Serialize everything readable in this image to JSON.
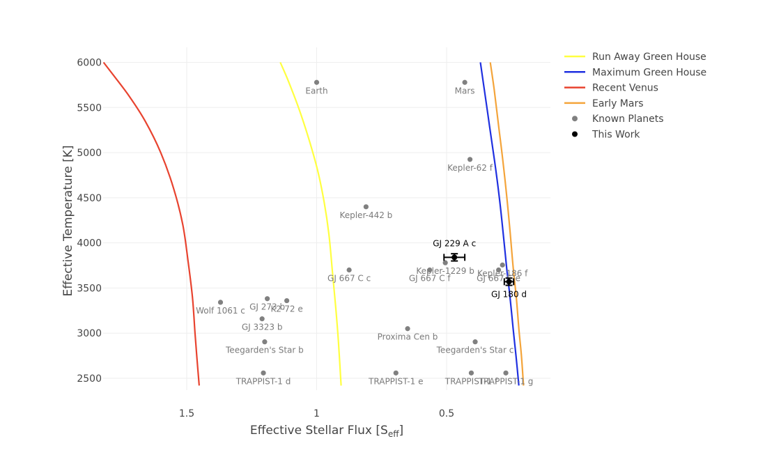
{
  "chart_data": {
    "type": "scatter",
    "xlabel": "Effective Stellar Flux [S",
    "xlabel_sub": "eff",
    "xlabel_suffix": "]",
    "ylabel": "Effective Temperature [K]",
    "x_reversed": true,
    "xlim": [
      1.82,
      0.1
    ],
    "ylim": [
      2400,
      6070
    ],
    "xticks": [
      {
        "value": 1.5,
        "label": "1.5"
      },
      {
        "value": 1.0,
        "label": "1"
      },
      {
        "value": 0.5,
        "label": "0.5"
      }
    ],
    "yticks": [
      {
        "value": 6000,
        "label": "6000"
      },
      {
        "value": 5500,
        "label": "5500"
      },
      {
        "value": 5000,
        "label": "5000"
      },
      {
        "value": 4500,
        "label": "4500"
      },
      {
        "value": 4000,
        "label": "4000"
      },
      {
        "value": 3500,
        "label": "3500"
      },
      {
        "value": 3000,
        "label": "3000"
      },
      {
        "value": 2500,
        "label": "2500"
      }
    ],
    "grid": true,
    "legend_position": "top-right",
    "legend": [
      {
        "name": "Run Away Green House",
        "kind": "line",
        "color": "#ffff40"
      },
      {
        "name": "Maximum Green House",
        "kind": "line",
        "color": "#1f30e0"
      },
      {
        "name": "Recent Venus",
        "kind": "line",
        "color": "#e8432f"
      },
      {
        "name": "Early Mars",
        "kind": "line",
        "color": "#f4a43a"
      },
      {
        "name": "Known Planets",
        "kind": "marker",
        "color": "#808080"
      },
      {
        "name": "This Work",
        "kind": "marker",
        "color": "#000000"
      }
    ],
    "series": [
      {
        "name": "Recent Venus",
        "color": "#e8432f",
        "x": [
          1.82,
          1.78,
          1.72,
          1.66,
          1.6,
          1.55,
          1.515,
          1.495,
          1.478,
          1.468,
          1.46,
          1.452
        ],
        "y": [
          6000,
          5850,
          5620,
          5350,
          5000,
          4600,
          4200,
          3800,
          3400,
          3000,
          2700,
          2420
        ]
      },
      {
        "name": "Run Away Green House",
        "color": "#ffff40",
        "x": [
          1.14,
          1.11,
          1.07,
          1.03,
          0.996,
          0.971,
          0.953,
          0.94,
          0.927,
          0.916,
          0.906
        ],
        "y": [
          6000,
          5800,
          5500,
          5150,
          4800,
          4450,
          4100,
          3700,
          3300,
          2900,
          2420
        ]
      },
      {
        "name": "Maximum Green House",
        "color": "#1f30e0",
        "x": [
          0.37,
          0.355,
          0.335,
          0.315,
          0.297,
          0.282,
          0.268,
          0.256,
          0.244,
          0.233,
          0.222
        ],
        "y": [
          6000,
          5700,
          5300,
          4900,
          4500,
          4100,
          3700,
          3400,
          3050,
          2750,
          2420
        ]
      },
      {
        "name": "Early Mars",
        "color": "#f4a43a",
        "x": [
          0.332,
          0.317,
          0.3,
          0.283,
          0.268,
          0.255,
          0.243,
          0.232,
          0.222,
          0.212,
          0.204
        ],
        "y": [
          6000,
          5700,
          5300,
          4900,
          4500,
          4100,
          3700,
          3400,
          3050,
          2750,
          2420
        ]
      }
    ],
    "known_planets": [
      {
        "name": "Earth",
        "x": 1.0,
        "y": 5778
      },
      {
        "name": "Mars",
        "x": 0.43,
        "y": 5778
      },
      {
        "name": "Kepler-62 f",
        "x": 0.41,
        "y": 4925
      },
      {
        "name": "Kepler-442 b",
        "x": 0.81,
        "y": 4400
      },
      {
        "name": "Kepler-1229 b",
        "x": 0.505,
        "y": 3780
      },
      {
        "name": "Kepler-186 f",
        "x": 0.285,
        "y": 3755
      },
      {
        "name": "GJ 667 C c",
        "x": 0.875,
        "y": 3700
      },
      {
        "name": "GJ 667 C f",
        "x": 0.565,
        "y": 3700
      },
      {
        "name": "GJ 667 C e",
        "x": 0.3,
        "y": 3700
      },
      {
        "name": "Wolf 1061 c",
        "x": 1.37,
        "y": 3342
      },
      {
        "name": "GJ 273 b",
        "x": 1.19,
        "y": 3382
      },
      {
        "name": "K2-72 e",
        "x": 1.115,
        "y": 3360
      },
      {
        "name": "GJ 3323 b",
        "x": 1.21,
        "y": 3159
      },
      {
        "name": "Proxima Cen b",
        "x": 0.65,
        "y": 3050
      },
      {
        "name": "Teegarden's Star b",
        "x": 1.2,
        "y": 2904
      },
      {
        "name": "Teegarden's Star c",
        "x": 0.39,
        "y": 2904
      },
      {
        "name": "TRAPPIST-1 d",
        "x": 1.205,
        "y": 2559
      },
      {
        "name": "TRAPPIST-1 e",
        "x": 0.695,
        "y": 2559
      },
      {
        "name": "TRAPPIST-1 f",
        "x": 0.405,
        "y": 2559
      },
      {
        "name": "TRAPPIST-1 g",
        "x": 0.272,
        "y": 2559
      }
    ],
    "this_work": [
      {
        "name": "GJ 229 A c",
        "x": 0.47,
        "y": 3840,
        "xerr": 0.04,
        "yerr": 40
      },
      {
        "name": "GJ 180 d",
        "x": 0.26,
        "y": 3570,
        "xerr": 0.018,
        "yerr": 40
      }
    ]
  }
}
